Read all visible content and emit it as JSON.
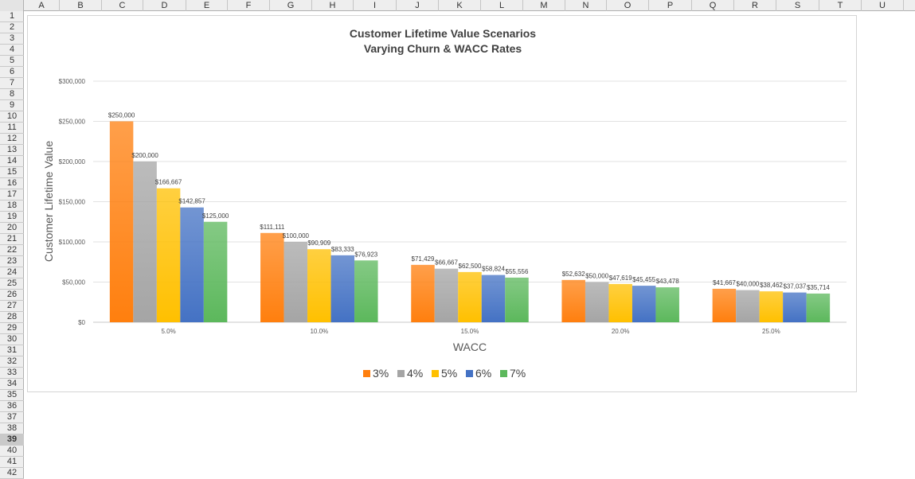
{
  "spreadsheet": {
    "columns": [
      "A",
      "B",
      "C",
      "D",
      "E",
      "F",
      "G",
      "H",
      "I",
      "J",
      "K",
      "L",
      "M",
      "N",
      "O",
      "P",
      "Q",
      "R",
      "S",
      "T",
      "U"
    ],
    "rows": [
      "1",
      "2",
      "3",
      "4",
      "5",
      "6",
      "7",
      "8",
      "9",
      "10",
      "11",
      "12",
      "13",
      "14",
      "15",
      "16",
      "17",
      "18",
      "19",
      "20",
      "21",
      "22",
      "23",
      "24",
      "25",
      "26",
      "27",
      "28",
      "29",
      "30",
      "31",
      "32",
      "33",
      "34",
      "35",
      "36",
      "37",
      "38",
      "39",
      "40",
      "41",
      "42"
    ],
    "selected_row": "39"
  },
  "chart_data": {
    "type": "bar",
    "title": "Customer Lifetime Value Scenarios",
    "subtitle": "Varying Churn & WACC Rates",
    "xlabel": "WACC",
    "ylabel": "Customer Lifetime Value",
    "categories": [
      "5.0%",
      "10.0%",
      "15.0%",
      "20.0%",
      "25.0%"
    ],
    "ylim": [
      0,
      300000
    ],
    "yticks": [
      "$0",
      "$50,000",
      "$100,000",
      "$150,000",
      "$200,000",
      "$250,000",
      "$300,000"
    ],
    "grid": true,
    "legend_position": "bottom",
    "series": [
      {
        "name": "3%",
        "color": "#ff7f0e",
        "values": [
          250000,
          111111,
          71429,
          52632,
          41667
        ],
        "labels": [
          "$250,000",
          "$111,111",
          "$71,429",
          "$52,632",
          "$41,667"
        ]
      },
      {
        "name": "4%",
        "color": "#a5a5a5",
        "values": [
          200000,
          100000,
          66667,
          50000,
          40000
        ],
        "labels": [
          "$200,000",
          "$100,000",
          "$66,667",
          "$50,000",
          "$40,000"
        ]
      },
      {
        "name": "5%",
        "color": "#ffc000",
        "values": [
          166667,
          90909,
          62500,
          47619,
          38462
        ],
        "labels": [
          "$166,667",
          "$90,909",
          "$62,500",
          "$47,619",
          "$38,462"
        ]
      },
      {
        "name": "6%",
        "color": "#4472c4",
        "values": [
          142857,
          83333,
          58824,
          45455,
          37037
        ],
        "labels": [
          "$142,857",
          "$83,333",
          "$58,824",
          "$45,455",
          "$37,037"
        ]
      },
      {
        "name": "7%",
        "color": "#5cb85c",
        "values": [
          125000,
          76923,
          55556,
          43478,
          35714
        ],
        "labels": [
          "$125,000",
          "$76,923",
          "$55,556",
          "$43,478",
          "$35,714"
        ]
      }
    ]
  }
}
